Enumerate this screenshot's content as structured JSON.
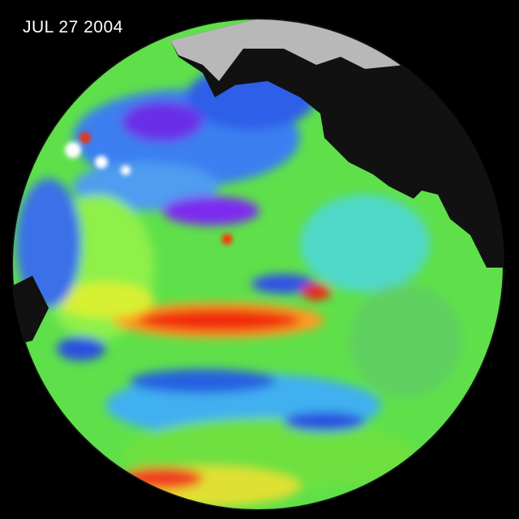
{
  "date_label": "JUL 27 2004"
}
